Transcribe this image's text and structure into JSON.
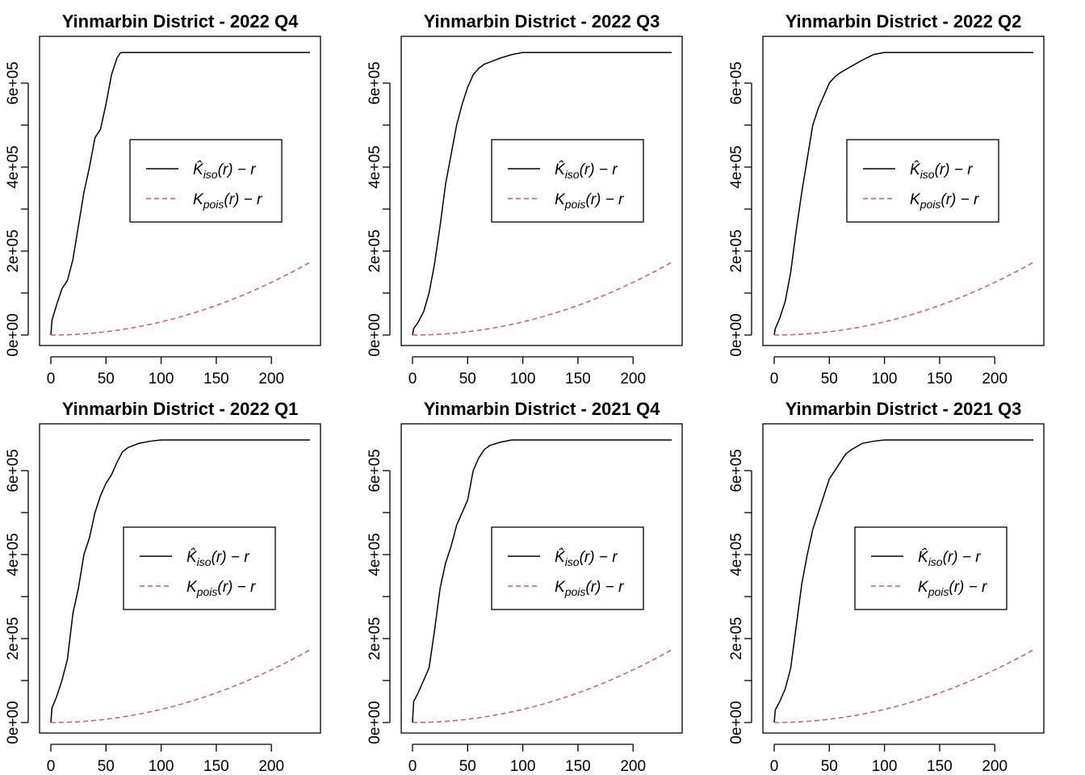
{
  "chart_data": [
    {
      "type": "line",
      "title": "Yinmarbin District - 2022 Q4",
      "xlabel": "",
      "ylabel": "",
      "xlim": [
        0,
        235
      ],
      "ylim": [
        0,
        680000
      ],
      "x_ticks": [
        "0",
        "50",
        "100",
        "150",
        "200"
      ],
      "y_ticks": [
        "0e+00",
        "2e+05",
        "4e+05",
        "6e+05"
      ],
      "legend_position": "center",
      "series": [
        {
          "name": "K̂iso(r) − r",
          "legend_main": "K̂",
          "legend_sub": "iso",
          "legend_tail": "(r) − r",
          "color": "#000000",
          "dash": "solid",
          "x": [
            0,
            1,
            5,
            10,
            15,
            20,
            25,
            30,
            35,
            40,
            45,
            50,
            55,
            60,
            63,
            65,
            70,
            100,
            150,
            200,
            235
          ],
          "y": [
            0,
            35000,
            70000,
            110000,
            130000,
            180000,
            260000,
            340000,
            400000,
            470000,
            490000,
            550000,
            620000,
            660000,
            672000,
            673000,
            673000,
            673000,
            673000,
            673000,
            673000
          ]
        },
        {
          "name": "Kpois(r) − r",
          "legend_main": "K",
          "legend_sub": "pois",
          "legend_tail": "(r) − r",
          "color": "#DF536B",
          "dash": "dashed",
          "formula": "pi*r^2 - r"
        }
      ]
    },
    {
      "type": "line",
      "title": "Yinmarbin District - 2022 Q3",
      "xlabel": "",
      "ylabel": "",
      "xlim": [
        0,
        235
      ],
      "ylim": [
        0,
        680000
      ],
      "x_ticks": [
        "0",
        "50",
        "100",
        "150",
        "200"
      ],
      "y_ticks": [
        "0e+00",
        "2e+05",
        "4e+05",
        "6e+05"
      ],
      "legend_position": "center",
      "series": [
        {
          "name": "K̂iso(r) − r",
          "legend_main": "K̂",
          "legend_sub": "iso",
          "legend_tail": "(r) − r",
          "color": "#000000",
          "dash": "solid",
          "x": [
            0,
            1,
            5,
            10,
            15,
            20,
            25,
            30,
            35,
            40,
            45,
            50,
            55,
            60,
            65,
            70,
            80,
            90,
            100,
            110,
            150,
            200,
            235
          ],
          "y": [
            0,
            15000,
            30000,
            55000,
            100000,
            170000,
            260000,
            360000,
            430000,
            500000,
            550000,
            590000,
            620000,
            635000,
            645000,
            650000,
            660000,
            668000,
            673000,
            673000,
            673000,
            673000,
            673000
          ]
        },
        {
          "name": "Kpois(r) − r",
          "legend_main": "K",
          "legend_sub": "pois",
          "legend_tail": "(r) − r",
          "color": "#DF536B",
          "dash": "dashed",
          "formula": "pi*r^2 - r"
        }
      ]
    },
    {
      "type": "line",
      "title": "Yinmarbin District - 2022 Q2",
      "xlabel": "",
      "ylabel": "",
      "xlim": [
        0,
        235
      ],
      "ylim": [
        0,
        680000
      ],
      "x_ticks": [
        "0",
        "50",
        "100",
        "150",
        "200"
      ],
      "y_ticks": [
        "0e+00",
        "2e+05",
        "4e+05",
        "6e+05"
      ],
      "legend_position": "center",
      "series": [
        {
          "name": "K̂iso(r) − r",
          "legend_main": "K̂",
          "legend_sub": "iso",
          "legend_tail": "(r) − r",
          "color": "#000000",
          "dash": "solid",
          "x": [
            0,
            1,
            5,
            10,
            15,
            20,
            25,
            30,
            35,
            40,
            45,
            50,
            55,
            60,
            70,
            80,
            90,
            100,
            150,
            200,
            235
          ],
          "y": [
            0,
            15000,
            40000,
            80000,
            150000,
            250000,
            340000,
            420000,
            500000,
            540000,
            570000,
            600000,
            615000,
            625000,
            640000,
            655000,
            668000,
            673000,
            673000,
            673000,
            673000
          ]
        },
        {
          "name": "Kpois(r) − r",
          "legend_main": "K",
          "legend_sub": "pois",
          "legend_tail": "(r) − r",
          "color": "#DF536B",
          "dash": "dashed",
          "formula": "pi*r^2 - r"
        }
      ]
    },
    {
      "type": "line",
      "title": "Yinmarbin District - 2022 Q1",
      "xlabel": "",
      "ylabel": "",
      "xlim": [
        0,
        235
      ],
      "ylim": [
        0,
        680000
      ],
      "x_ticks": [
        "0",
        "50",
        "100",
        "150",
        "200"
      ],
      "y_ticks": [
        "0e+00",
        "2e+05",
        "4e+05",
        "6e+05"
      ],
      "legend_position": "center",
      "series": [
        {
          "name": "K̂iso(r) − r",
          "legend_main": "K̂",
          "legend_sub": "iso",
          "legend_tail": "(r) − r",
          "color": "#000000",
          "dash": "solid",
          "x": [
            0,
            1,
            5,
            10,
            15,
            20,
            25,
            30,
            35,
            40,
            45,
            50,
            55,
            60,
            65,
            70,
            80,
            90,
            100,
            150,
            200,
            235
          ],
          "y": [
            0,
            35000,
            60000,
            100000,
            150000,
            260000,
            320000,
            400000,
            440000,
            500000,
            540000,
            570000,
            590000,
            620000,
            645000,
            655000,
            665000,
            670000,
            673000,
            673000,
            673000,
            673000
          ]
        },
        {
          "name": "Kpois(r) − r",
          "legend_main": "K",
          "legend_sub": "pois",
          "legend_tail": "(r) − r",
          "color": "#DF536B",
          "dash": "dashed",
          "formula": "pi*r^2 - r"
        }
      ]
    },
    {
      "type": "line",
      "title": "Yinmarbin District - 2021 Q4",
      "xlabel": "",
      "ylabel": "",
      "xlim": [
        0,
        235
      ],
      "ylim": [
        0,
        680000
      ],
      "x_ticks": [
        "0",
        "50",
        "100",
        "150",
        "200"
      ],
      "y_ticks": [
        "0e+00",
        "2e+05",
        "4e+05",
        "6e+05"
      ],
      "legend_position": "center",
      "series": [
        {
          "name": "K̂iso(r) − r",
          "legend_main": "K̂",
          "legend_sub": "iso",
          "legend_tail": "(r) − r",
          "color": "#000000",
          "dash": "solid",
          "x": [
            0,
            1,
            5,
            10,
            15,
            20,
            25,
            30,
            35,
            40,
            45,
            50,
            55,
            60,
            65,
            70,
            80,
            90,
            100,
            150,
            200,
            235
          ],
          "y": [
            0,
            50000,
            70000,
            100000,
            130000,
            220000,
            320000,
            380000,
            420000,
            470000,
            500000,
            530000,
            600000,
            630000,
            650000,
            660000,
            668000,
            673000,
            673000,
            673000,
            673000,
            673000
          ]
        },
        {
          "name": "Kpois(r) − r",
          "legend_main": "K",
          "legend_sub": "pois",
          "legend_tail": "(r) − r",
          "color": "#DF536B",
          "dash": "dashed",
          "formula": "pi*r^2 - r"
        }
      ]
    },
    {
      "type": "line",
      "title": "Yinmarbin District - 2021 Q3",
      "xlabel": "",
      "ylabel": "",
      "xlim": [
        0,
        235
      ],
      "ylim": [
        0,
        680000
      ],
      "x_ticks": [
        "0",
        "50",
        "100",
        "150",
        "200"
      ],
      "y_ticks": [
        "0e+00",
        "2e+05",
        "4e+05",
        "6e+05"
      ],
      "legend_position": "center",
      "series": [
        {
          "name": "K̂iso(r) − r",
          "legend_main": "K̂",
          "legend_sub": "iso",
          "legend_tail": "(r) − r",
          "color": "#000000",
          "dash": "solid",
          "x": [
            0,
            1,
            5,
            10,
            15,
            20,
            25,
            30,
            35,
            40,
            45,
            50,
            55,
            60,
            65,
            70,
            80,
            90,
            100,
            150,
            200,
            235
          ],
          "y": [
            0,
            30000,
            50000,
            80000,
            130000,
            230000,
            330000,
            400000,
            460000,
            500000,
            540000,
            580000,
            600000,
            620000,
            640000,
            650000,
            665000,
            670000,
            673000,
            673000,
            673000,
            673000
          ]
        },
        {
          "name": "Kpois(r) − r",
          "legend_main": "K",
          "legend_sub": "pois",
          "legend_tail": "(r) − r",
          "color": "#DF536B",
          "dash": "dashed",
          "formula": "pi*r^2 - r"
        }
      ]
    }
  ]
}
